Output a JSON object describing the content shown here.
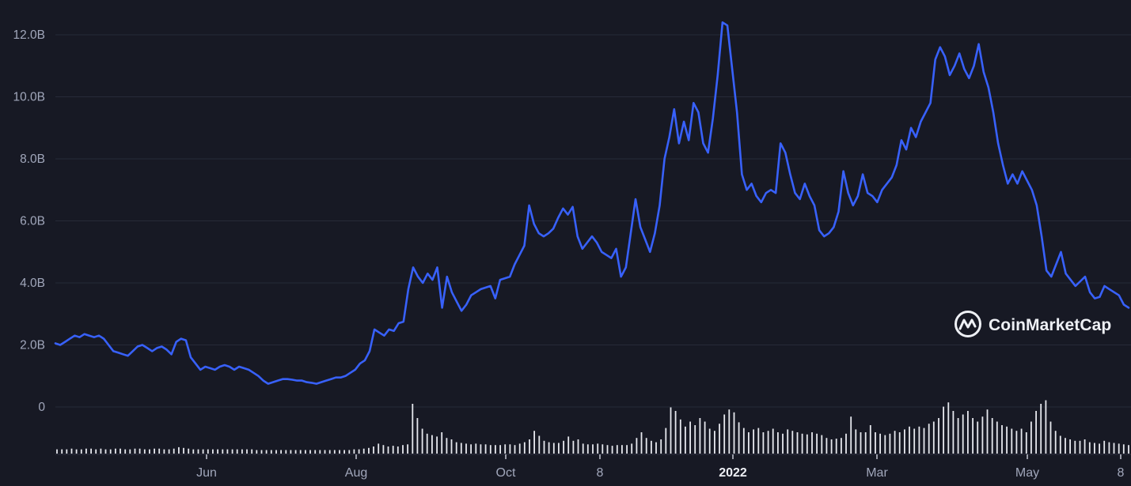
{
  "chart_data": {
    "type": "line",
    "title": "",
    "xlabel": "",
    "ylabel": "",
    "x_tick_labels": [
      "Jun",
      "Aug",
      "Oct",
      "8",
      "2022",
      "Mar",
      "May",
      "8"
    ],
    "y_tick_labels": [
      "0",
      "2.0B",
      "4.0B",
      "6.0B",
      "8.0B",
      "10.0B",
      "12.0B"
    ],
    "ylim": [
      0,
      12400000000
    ],
    "grid": "horizontal",
    "line_color": "#3861fb",
    "volume_bar_color": "#e6e8ee",
    "series": [
      {
        "values_billions": [
          2.05,
          2.0,
          2.1,
          2.2,
          2.3,
          2.25,
          2.35,
          2.3,
          2.25,
          2.3,
          2.2,
          2.0,
          1.8,
          1.75,
          1.7,
          1.65,
          1.8,
          1.95,
          2.0,
          1.9,
          1.8,
          1.9,
          1.95,
          1.85,
          1.7,
          2.1,
          2.2,
          2.15,
          1.6,
          1.4,
          1.2,
          1.3,
          1.25,
          1.2,
          1.3,
          1.35,
          1.3,
          1.2,
          1.3,
          1.25,
          1.2,
          1.1,
          1.0,
          0.85,
          0.75,
          0.8,
          0.85,
          0.9,
          0.9,
          0.88,
          0.85,
          0.85,
          0.8,
          0.78,
          0.75,
          0.8,
          0.85,
          0.9,
          0.95,
          0.95,
          1.0,
          1.1,
          1.2,
          1.4,
          1.5,
          1.8,
          2.5,
          2.4,
          2.3,
          2.5,
          2.45,
          2.7,
          2.75,
          3.8,
          4.5,
          4.2,
          4.0,
          4.3,
          4.1,
          4.5,
          3.2,
          4.2,
          3.7,
          3.4,
          3.1,
          3.3,
          3.6,
          3.7,
          3.8,
          3.85,
          3.9,
          3.5,
          4.1,
          4.15,
          4.2,
          4.6,
          4.9,
          5.2,
          6.5,
          5.9,
          5.6,
          5.5,
          5.6,
          5.75,
          6.1,
          6.4,
          6.2,
          6.45,
          5.5,
          5.1,
          5.3,
          5.5,
          5.3,
          5.0,
          4.9,
          4.8,
          5.1,
          4.2,
          4.5,
          5.6,
          6.7,
          5.8,
          5.4,
          5.0,
          5.6,
          6.5,
          8.0,
          8.7,
          9.6,
          8.5,
          9.2,
          8.6,
          9.8,
          9.5,
          8.5,
          8.2,
          9.3,
          10.7,
          12.4,
          12.3,
          10.9,
          9.5,
          7.5,
          7.0,
          7.2,
          6.8,
          6.6,
          6.9,
          7.0,
          6.9,
          8.5,
          8.2,
          7.5,
          6.9,
          6.7,
          7.2,
          6.8,
          6.5,
          5.7,
          5.5,
          5.6,
          5.8,
          6.3,
          7.6,
          6.9,
          6.5,
          6.8,
          7.5,
          6.9,
          6.8,
          6.6,
          7.0,
          7.2,
          7.4,
          7.8,
          8.6,
          8.3,
          9.0,
          8.7,
          9.2,
          9.5,
          9.8,
          11.2,
          11.6,
          11.3,
          10.7,
          11.0,
          11.4,
          10.9,
          10.6,
          11.0,
          11.7,
          10.8,
          10.3,
          9.5,
          8.5,
          7.8,
          7.2,
          7.5,
          7.2,
          7.6,
          7.3,
          7.0,
          6.5,
          5.5,
          4.4,
          4.2,
          4.6,
          5.0,
          4.3,
          4.1,
          3.9,
          4.05,
          4.2,
          3.7,
          3.5,
          3.55,
          3.9,
          3.8,
          3.7,
          3.6,
          3.3,
          3.2
        ]
      }
    ],
    "volume_relative": [
      0.06,
      0.06,
      0.06,
      0.07,
      0.06,
      0.06,
      0.07,
      0.07,
      0.06,
      0.07,
      0.06,
      0.06,
      0.07,
      0.07,
      0.06,
      0.06,
      0.07,
      0.07,
      0.06,
      0.06,
      0.07,
      0.07,
      0.06,
      0.06,
      0.07,
      0.09,
      0.08,
      0.07,
      0.06,
      0.06,
      0.06,
      0.06,
      0.06,
      0.06,
      0.06,
      0.06,
      0.06,
      0.06,
      0.06,
      0.06,
      0.06,
      0.05,
      0.05,
      0.05,
      0.05,
      0.05,
      0.05,
      0.05,
      0.05,
      0.05,
      0.05,
      0.05,
      0.05,
      0.05,
      0.05,
      0.05,
      0.05,
      0.05,
      0.05,
      0.05,
      0.05,
      0.06,
      0.06,
      0.07,
      0.08,
      0.1,
      0.14,
      0.12,
      0.1,
      0.11,
      0.1,
      0.12,
      0.13,
      0.7,
      0.5,
      0.35,
      0.28,
      0.26,
      0.24,
      0.3,
      0.22,
      0.2,
      0.16,
      0.15,
      0.14,
      0.13,
      0.14,
      0.13,
      0.13,
      0.12,
      0.12,
      0.12,
      0.13,
      0.13,
      0.12,
      0.14,
      0.16,
      0.2,
      0.32,
      0.25,
      0.18,
      0.16,
      0.15,
      0.15,
      0.18,
      0.24,
      0.18,
      0.2,
      0.14,
      0.13,
      0.13,
      0.14,
      0.13,
      0.12,
      0.11,
      0.12,
      0.12,
      0.12,
      0.14,
      0.22,
      0.3,
      0.22,
      0.18,
      0.16,
      0.2,
      0.36,
      0.65,
      0.6,
      0.48,
      0.38,
      0.45,
      0.4,
      0.5,
      0.45,
      0.35,
      0.32,
      0.42,
      0.55,
      0.62,
      0.58,
      0.44,
      0.36,
      0.3,
      0.34,
      0.36,
      0.3,
      0.32,
      0.35,
      0.3,
      0.28,
      0.34,
      0.32,
      0.3,
      0.28,
      0.27,
      0.3,
      0.28,
      0.26,
      0.22,
      0.2,
      0.21,
      0.22,
      0.28,
      0.52,
      0.34,
      0.3,
      0.3,
      0.4,
      0.3,
      0.28,
      0.26,
      0.28,
      0.32,
      0.3,
      0.34,
      0.38,
      0.35,
      0.38,
      0.36,
      0.42,
      0.45,
      0.5,
      0.66,
      0.72,
      0.6,
      0.5,
      0.55,
      0.6,
      0.5,
      0.45,
      0.52,
      0.62,
      0.5,
      0.45,
      0.4,
      0.38,
      0.35,
      0.32,
      0.35,
      0.3,
      0.45,
      0.6,
      0.7,
      0.75,
      0.45,
      0.32,
      0.25,
      0.22,
      0.2,
      0.18,
      0.18,
      0.2,
      0.16,
      0.15,
      0.14,
      0.18,
      0.16,
      0.15,
      0.14,
      0.13,
      0.12
    ]
  },
  "watermark": {
    "text": "CoinMarketCap",
    "icon": "coinmarketcap-logo-icon"
  },
  "colors": {
    "background": "#171924",
    "gridline": "#262a38",
    "axis_text": "#a1a7bb",
    "bold_axis_text": "#eef0f5"
  }
}
